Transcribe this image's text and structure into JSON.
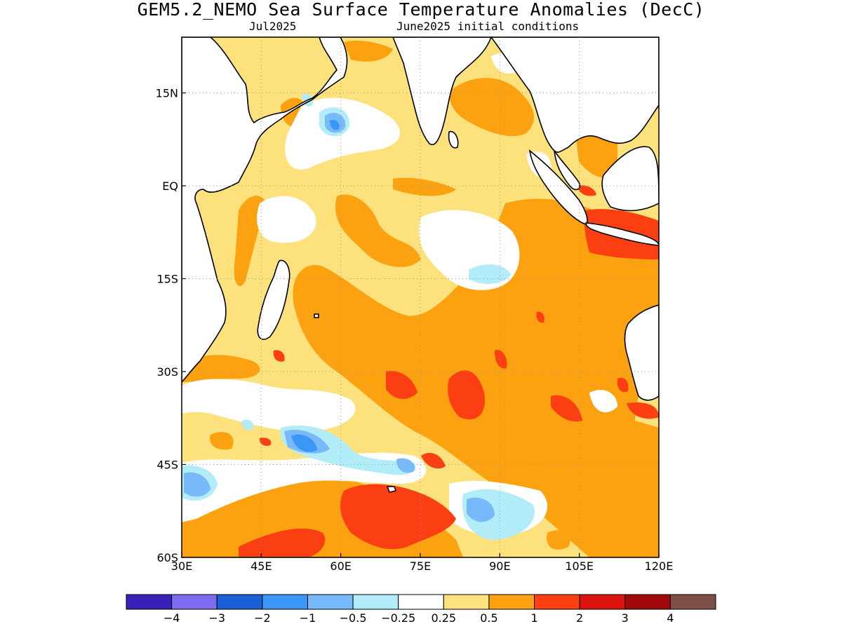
{
  "title": "GEM5.2_NEMO Sea Surface Temperature Anomalies (DecC)",
  "subtitle_left": "Jul2025",
  "subtitle_right": "June2025 initial conditions",
  "map": {
    "lon_range": [
      30,
      120
    ],
    "lat_range": [
      -60,
      24
    ],
    "lon_ticks": [
      {
        "value": 30,
        "label": "30E"
      },
      {
        "value": 45,
        "label": "45E"
      },
      {
        "value": 60,
        "label": "60E"
      },
      {
        "value": 75,
        "label": "75E"
      },
      {
        "value": 90,
        "label": "90E"
      },
      {
        "value": 105,
        "label": "105E"
      },
      {
        "value": 120,
        "label": "120E"
      }
    ],
    "lat_ticks": [
      {
        "value": 15,
        "label": "15N"
      },
      {
        "value": 0,
        "label": "EQ"
      },
      {
        "value": -15,
        "label": "15S"
      },
      {
        "value": -30,
        "label": "30S"
      },
      {
        "value": -45,
        "label": "45S"
      },
      {
        "value": -60,
        "label": "60S"
      }
    ],
    "gridlines": "dotted"
  },
  "colorbar": {
    "colors": [
      "#3a1fb8",
      "#7b6cf0",
      "#1a5fd6",
      "#3c96f5",
      "#78b9f9",
      "#b2ecf9",
      "#ffffff",
      "#fde17c",
      "#fca10f",
      "#fb3f12",
      "#dc1410",
      "#a10a0a",
      "#7d4f46"
    ],
    "labels": [
      "−4",
      "−3",
      "−2",
      "−1",
      "−0.5",
      "−0.25",
      "0.25",
      "0.5",
      "1",
      "2",
      "3",
      "4"
    ]
  },
  "colors": {
    "land": "#ffffff",
    "coastline": "#000000",
    "grid": "#999999"
  }
}
